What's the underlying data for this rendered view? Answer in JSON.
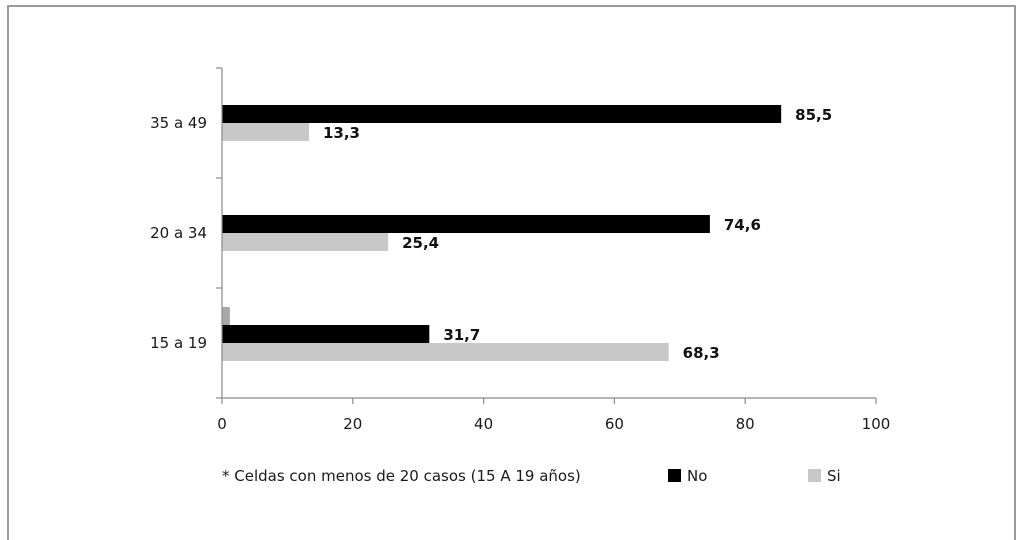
{
  "chart_data": {
    "type": "bar",
    "orientation": "horizontal",
    "categories": [
      "15 a 19",
      "20 a 34",
      "35 a 49"
    ],
    "series": [
      {
        "name": "No",
        "values": [
          31.7,
          74.6,
          85.5
        ],
        "color": "#000000"
      },
      {
        "name": "Si",
        "values": [
          68.3,
          25.4,
          13.3
        ],
        "color": "#c8c8c8"
      }
    ],
    "xlim": [
      0,
      100
    ],
    "xticks": [
      0,
      20,
      40,
      60,
      80,
      100
    ],
    "grid": false,
    "legend_position": "bottom",
    "note": "* Celdas con menos de 20 casos (15 A 19 años)",
    "extra_bar": {
      "category": "15 a 19",
      "value": 1.2,
      "color": "#a8a8a8"
    }
  }
}
